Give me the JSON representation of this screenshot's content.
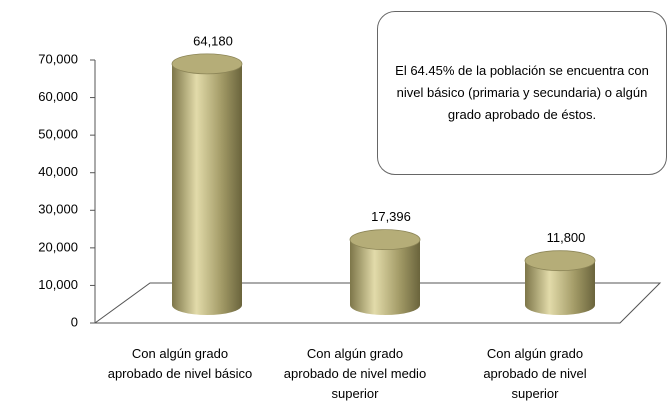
{
  "chart_data": {
    "type": "bar3d",
    "categories": [
      "Con algún grado aprobado de nivel básico",
      "Con algún grado aprobado de nivel medio superior",
      "Con algún grado aprobado de nivel superior"
    ],
    "values": [
      64180,
      17396,
      11800
    ],
    "value_labels": [
      "64,180",
      "17,396",
      "11,800"
    ],
    "color": "#b5ad78",
    "ylim": [
      0,
      70000
    ],
    "yticks": [
      0,
      {
        "value": 10000,
        "label": "10,000"
      },
      {
        "value": 20000,
        "label": "20,000"
      },
      {
        "value": 30000,
        "label": "30,000"
      },
      {
        "value": 40000,
        "label": "40,000"
      },
      {
        "value": 50000,
        "label": "50,000"
      },
      {
        "value": 60000,
        "label": "60,000"
      },
      {
        "value": 70000,
        "label": "70,000"
      }
    ],
    "annotation": "El 64.45% de la población se encuentra con nivel básico (primaria y secundaria) o algún grado aprobado de éstos."
  }
}
